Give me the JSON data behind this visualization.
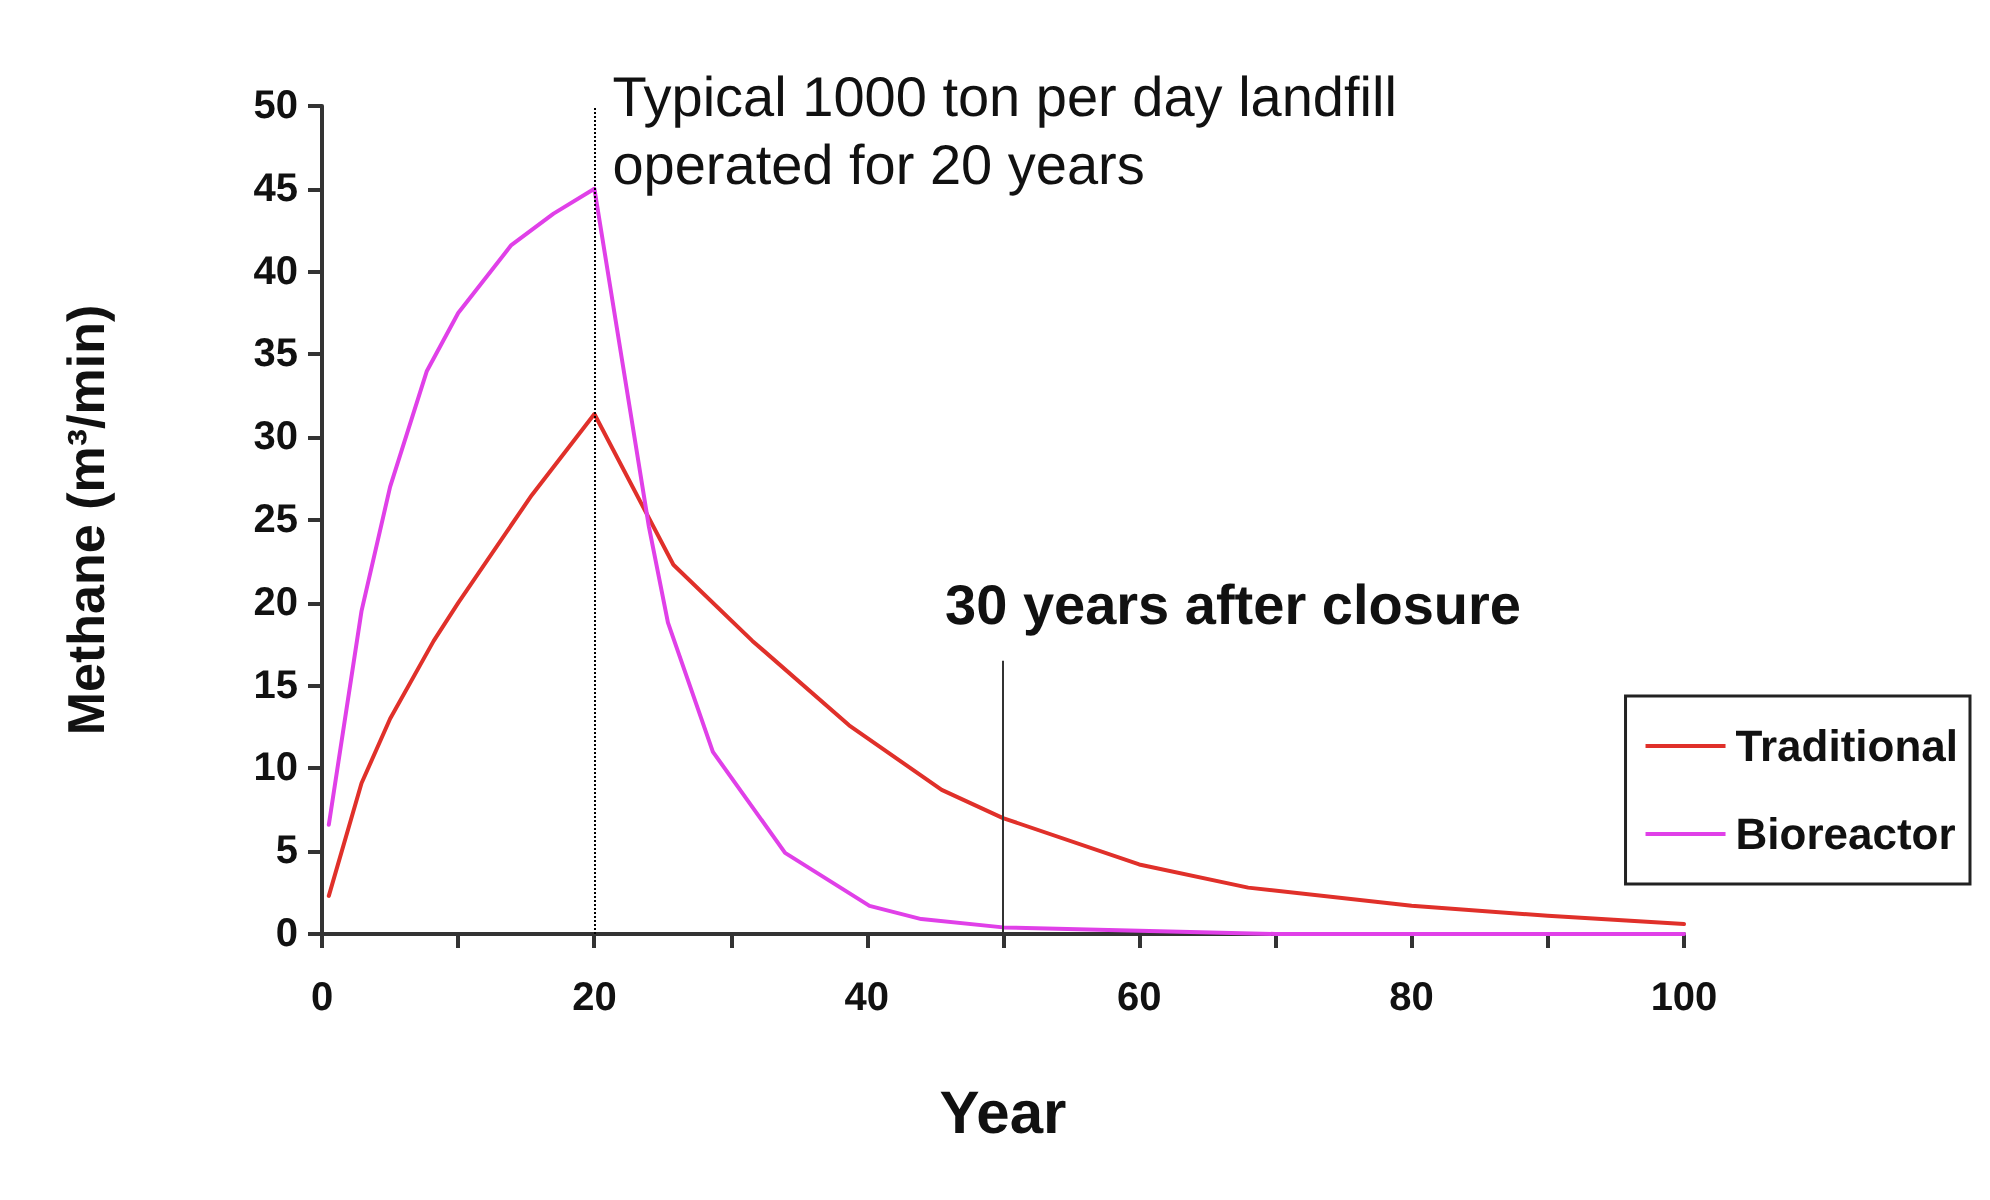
{
  "chart_data": {
    "type": "line",
    "xlabel": "Year",
    "ylabel": "Methane (m³/min)",
    "xlim": [
      0,
      100
    ],
    "xticks": [
      0,
      {
        "value": 10,
        "label": null
      },
      20,
      {
        "value": 30,
        "label": null
      },
      40,
      {
        "value": 50,
        "label": null
      },
      60,
      {
        "value": 70,
        "label": null
      },
      80,
      {
        "value": 90,
        "label": null
      },
      100
    ],
    "ylim": [
      0,
      50
    ],
    "yticks": [
      0,
      5,
      10,
      15,
      20,
      25,
      30,
      35,
      40,
      45,
      50
    ],
    "series": [
      {
        "name": "Traditional",
        "color": "#e0302a",
        "x": [
          0.5,
          2.9,
          5,
          8.2,
          10,
          15.4,
          20,
          25.8,
          31.6,
          38.7,
          45.5,
          50,
          60,
          68,
          80,
          90,
          100
        ],
        "values": [
          2.3,
          9.1,
          13,
          17.7,
          20,
          26.5,
          31.4,
          22.3,
          17.7,
          12.6,
          8.7,
          7,
          4.2,
          2.8,
          1.7,
          1.1,
          0.6
        ]
      },
      {
        "name": "Bioreactor",
        "color": "#e040e8",
        "x": [
          0.5,
          2.9,
          5,
          7.7,
          10,
          13.9,
          17,
          20,
          22.1,
          24,
          25.4,
          28.7,
          34,
          40.2,
          44,
          50,
          60,
          70,
          80,
          90,
          100
        ],
        "values": [
          6.6,
          19.5,
          27,
          34,
          37.5,
          41.6,
          43.5,
          45,
          34.3,
          24.6,
          18.8,
          11,
          4.9,
          1.7,
          0.9,
          0.4,
          0.2,
          0,
          0,
          0,
          0
        ]
      }
    ],
    "ref_lines": [
      {
        "axis": "x",
        "value": 20,
        "label": "Typical 1000 ton per day landfill operated for 20 years",
        "line_style": "dotted",
        "color": "#000000"
      }
    ],
    "annotations": [
      {
        "text": "30 years after closure",
        "x": 50,
        "y": 0
      }
    ],
    "legend": "right",
    "grid": false,
    "marker": "none",
    "line_style": "solid"
  }
}
